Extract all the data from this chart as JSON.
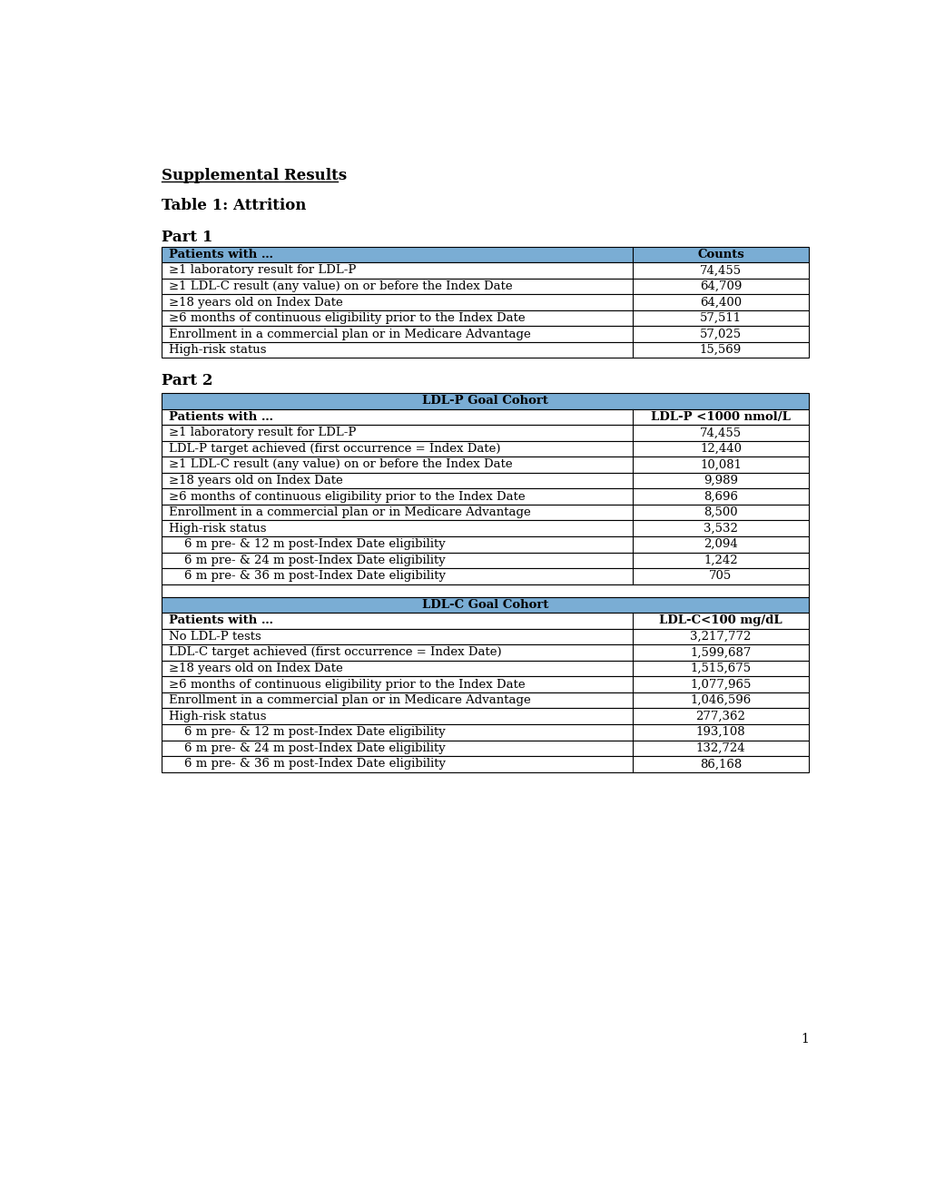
{
  "title_supplemental": "Supplemental Results",
  "title_table": "Table 1: Attrition",
  "part1_label": "Part 1",
  "part2_label": "Part 2",
  "header_color": "#7aadd4",
  "border_color": "#000000",
  "text_color": "#000000",
  "part1_header": [
    "Patients with …",
    "Counts"
  ],
  "part1_rows": [
    [
      "≥1 laboratory result for LDL-P",
      "74,455"
    ],
    [
      "≥1 LDL-C result (any value) on or before the Index Date",
      "64,709"
    ],
    [
      "≥18 years old on Index Date",
      "64,400"
    ],
    [
      "≥6 months of continuous eligibility prior to the Index Date",
      "57,511"
    ],
    [
      "Enrollment in a commercial plan or in Medicare Advantage",
      "57,025"
    ],
    [
      "High-risk status",
      "15,569"
    ]
  ],
  "part2_ldlp_merge_header": "LDL-P Goal Cohort",
  "part2_ldlp_header": [
    "Patients with …",
    "LDL-P <1000 nmol/L"
  ],
  "part2_ldlp_rows": [
    [
      "≥1 laboratory result for LDL-P",
      "74,455"
    ],
    [
      "LDL-P target achieved (first occurrence = Index Date)",
      "12,440"
    ],
    [
      "≥1 LDL-C result (any value) on or before the Index Date",
      "10,081"
    ],
    [
      "≥18 years old on Index Date",
      "9,989"
    ],
    [
      "≥6 months of continuous eligibility prior to the Index Date",
      "8,696"
    ],
    [
      "Enrollment in a commercial plan or in Medicare Advantage",
      "8,500"
    ],
    [
      "High-risk status",
      "3,532"
    ],
    [
      "    6 m pre- & 12 m post-Index Date eligibility",
      "2,094"
    ],
    [
      "    6 m pre- & 24 m post-Index Date eligibility",
      "1,242"
    ],
    [
      "    6 m pre- & 36 m post-Index Date eligibility",
      "705"
    ]
  ],
  "part2_ldlc_merge_header": "LDL-C Goal Cohort",
  "part2_ldlc_header": [
    "Patients with …",
    "LDL-C<100 mg/dL"
  ],
  "part2_ldlc_rows": [
    [
      "No LDL-P tests",
      "3,217,772"
    ],
    [
      "LDL-C target achieved (first occurrence = Index Date)",
      "1,599,687"
    ],
    [
      "≥18 years old on Index Date",
      "1,515,675"
    ],
    [
      "≥6 months of continuous eligibility prior to the Index Date",
      "1,077,965"
    ],
    [
      "Enrollment in a commercial plan or in Medicare Advantage",
      "1,046,596"
    ],
    [
      "High-risk status",
      "277,362"
    ],
    [
      "    6 m pre- & 12 m post-Index Date eligibility",
      "193,108"
    ],
    [
      "    6 m pre- & 24 m post-Index Date eligibility",
      "132,724"
    ],
    [
      "    6 m pre- & 36 m post-Index Date eligibility",
      "86,168"
    ]
  ],
  "page_number": "1",
  "background_color": "#ffffff",
  "font_size": 9.5,
  "title_font_size": 12
}
